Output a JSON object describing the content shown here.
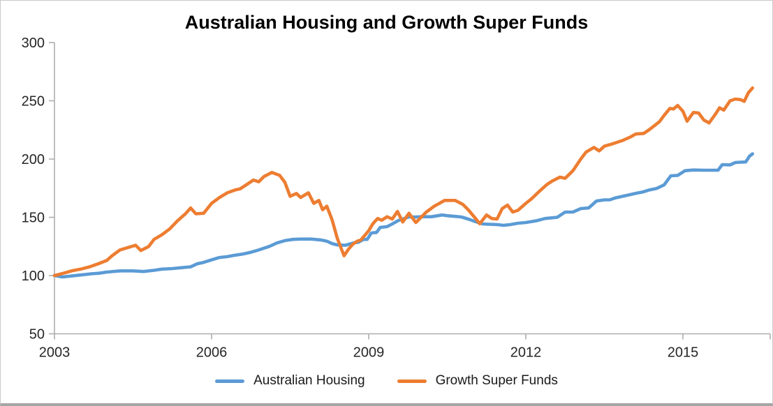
{
  "chart_data": {
    "type": "line",
    "title": "Australian Housing and Growth Super Funds",
    "xlabel": "",
    "ylabel": "",
    "grid": false,
    "legend_position": "bottom",
    "x_axis": {
      "min": 2003,
      "max": 2016.67,
      "tick_years": [
        2003,
        2006,
        2009,
        2012,
        2015
      ],
      "tick_labels": [
        "2003",
        "2006",
        "2009",
        "2012",
        "2015"
      ]
    },
    "y_axis": {
      "min": 50,
      "max": 300,
      "ticks": [
        50,
        100,
        150,
        200,
        250,
        300
      ]
    },
    "colors": {
      "housing": "#5B9BD5",
      "super_funds": "#ED7D31",
      "axis": "#ADADAD",
      "tick_text": "#262626"
    },
    "series": [
      {
        "name": "Australian Housing",
        "color": "#5B9BD5",
        "points": [
          [
            2003.0,
            100
          ],
          [
            2003.15,
            98.8
          ],
          [
            2003.3,
            99.5
          ],
          [
            2003.5,
            100.5
          ],
          [
            2003.7,
            101.5
          ],
          [
            2003.85,
            102
          ],
          [
            2004.0,
            103
          ],
          [
            2004.25,
            104
          ],
          [
            2004.5,
            104
          ],
          [
            2004.7,
            103.5
          ],
          [
            2004.9,
            104.5
          ],
          [
            2005.05,
            105.5
          ],
          [
            2005.25,
            106
          ],
          [
            2005.45,
            106.8
          ],
          [
            2005.6,
            107.5
          ],
          [
            2005.72,
            110
          ],
          [
            2005.85,
            111.3
          ],
          [
            2006.0,
            113.5
          ],
          [
            2006.15,
            115.5
          ],
          [
            2006.3,
            116.2
          ],
          [
            2006.45,
            117.5
          ],
          [
            2006.6,
            118.5
          ],
          [
            2006.75,
            120
          ],
          [
            2006.9,
            122
          ],
          [
            2007.1,
            125
          ],
          [
            2007.25,
            128
          ],
          [
            2007.4,
            130
          ],
          [
            2007.55,
            131
          ],
          [
            2007.7,
            131.3
          ],
          [
            2007.9,
            131.3
          ],
          [
            2008.1,
            130.5
          ],
          [
            2008.2,
            129.5
          ],
          [
            2008.3,
            127.5
          ],
          [
            2008.4,
            126.3
          ],
          [
            2008.55,
            126
          ],
          [
            2008.72,
            128.1
          ],
          [
            2008.8,
            128.5
          ],
          [
            2008.9,
            131
          ],
          [
            2008.97,
            131
          ],
          [
            2009.05,
            136.5
          ],
          [
            2009.15,
            137
          ],
          [
            2009.22,
            141.3
          ],
          [
            2009.35,
            142
          ],
          [
            2009.45,
            144.3
          ],
          [
            2009.57,
            147.3
          ],
          [
            2009.77,
            150.3
          ],
          [
            2009.9,
            150.3
          ],
          [
            2010.0,
            150.5
          ],
          [
            2010.2,
            150.5
          ],
          [
            2010.4,
            152
          ],
          [
            2010.5,
            151.4
          ],
          [
            2010.65,
            150.8
          ],
          [
            2010.77,
            150.3
          ],
          [
            2010.9,
            148.5
          ],
          [
            2011.05,
            146.1
          ],
          [
            2011.17,
            144.3
          ],
          [
            2011.3,
            144
          ],
          [
            2011.45,
            143.8
          ],
          [
            2011.57,
            143.1
          ],
          [
            2011.7,
            143.7
          ],
          [
            2011.85,
            144.9
          ],
          [
            2012.0,
            145.5
          ],
          [
            2012.2,
            147
          ],
          [
            2012.37,
            149
          ],
          [
            2012.6,
            150
          ],
          [
            2012.75,
            154.5
          ],
          [
            2012.9,
            154.5
          ],
          [
            2013.05,
            157.5
          ],
          [
            2013.2,
            158
          ],
          [
            2013.35,
            164
          ],
          [
            2013.5,
            165
          ],
          [
            2013.6,
            165
          ],
          [
            2013.7,
            166.5
          ],
          [
            2013.85,
            168
          ],
          [
            2014.0,
            169.5
          ],
          [
            2014.1,
            170.6
          ],
          [
            2014.24,
            171.8
          ],
          [
            2014.37,
            173.6
          ],
          [
            2014.5,
            174.8
          ],
          [
            2014.64,
            177.8
          ],
          [
            2014.77,
            185.6
          ],
          [
            2014.9,
            186
          ],
          [
            2015.04,
            190
          ],
          [
            2015.2,
            190.6
          ],
          [
            2015.4,
            190.4
          ],
          [
            2015.67,
            190.4
          ],
          [
            2015.75,
            195.2
          ],
          [
            2015.9,
            195
          ],
          [
            2016.0,
            197
          ],
          [
            2016.1,
            197.3
          ],
          [
            2016.2,
            197.5
          ],
          [
            2016.27,
            202.4
          ],
          [
            2016.33,
            204.5
          ]
        ]
      },
      {
        "name": "Growth Super Funds",
        "color": "#ED7D31",
        "points": [
          [
            2003.0,
            100
          ],
          [
            2003.17,
            102
          ],
          [
            2003.33,
            104
          ],
          [
            2003.5,
            105.5
          ],
          [
            2003.67,
            107.5
          ],
          [
            2003.83,
            110
          ],
          [
            2004.0,
            113
          ],
          [
            2004.1,
            117
          ],
          [
            2004.25,
            122
          ],
          [
            2004.4,
            124
          ],
          [
            2004.55,
            126
          ],
          [
            2004.65,
            121.5
          ],
          [
            2004.8,
            125
          ],
          [
            2004.9,
            131
          ],
          [
            2005.05,
            135
          ],
          [
            2005.2,
            140
          ],
          [
            2005.35,
            147
          ],
          [
            2005.5,
            153
          ],
          [
            2005.6,
            158
          ],
          [
            2005.7,
            153
          ],
          [
            2005.85,
            153.5
          ],
          [
            2006.0,
            162
          ],
          [
            2006.15,
            167
          ],
          [
            2006.3,
            171
          ],
          [
            2006.45,
            173.5
          ],
          [
            2006.55,
            174.5
          ],
          [
            2006.7,
            179
          ],
          [
            2006.8,
            182
          ],
          [
            2006.9,
            180.5
          ],
          [
            2007.0,
            185
          ],
          [
            2007.15,
            188.5
          ],
          [
            2007.3,
            186
          ],
          [
            2007.4,
            180
          ],
          [
            2007.5,
            168
          ],
          [
            2007.62,
            170.5
          ],
          [
            2007.7,
            167
          ],
          [
            2007.85,
            171
          ],
          [
            2007.95,
            162
          ],
          [
            2008.05,
            164.5
          ],
          [
            2008.12,
            156.5
          ],
          [
            2008.2,
            159.5
          ],
          [
            2008.3,
            148
          ],
          [
            2008.4,
            132
          ],
          [
            2008.53,
            117
          ],
          [
            2008.62,
            123
          ],
          [
            2008.7,
            127
          ],
          [
            2008.78,
            129.5
          ],
          [
            2008.85,
            130.5
          ],
          [
            2009.0,
            138.5
          ],
          [
            2009.08,
            144.5
          ],
          [
            2009.17,
            149
          ],
          [
            2009.25,
            147.5
          ],
          [
            2009.35,
            150.5
          ],
          [
            2009.45,
            148.5
          ],
          [
            2009.55,
            155
          ],
          [
            2009.65,
            146
          ],
          [
            2009.77,
            153.5
          ],
          [
            2009.9,
            145.5
          ],
          [
            2010.0,
            150
          ],
          [
            2010.1,
            154.5
          ],
          [
            2010.25,
            159.5
          ],
          [
            2010.45,
            164.5
          ],
          [
            2010.65,
            164.5
          ],
          [
            2010.8,
            161
          ],
          [
            2010.9,
            156.5
          ],
          [
            2011.05,
            148.5
          ],
          [
            2011.12,
            144.5
          ],
          [
            2011.25,
            152
          ],
          [
            2011.35,
            149
          ],
          [
            2011.45,
            148.5
          ],
          [
            2011.55,
            157.5
          ],
          [
            2011.65,
            160.5
          ],
          [
            2011.75,
            154.5
          ],
          [
            2011.85,
            156
          ],
          [
            2012.0,
            162
          ],
          [
            2012.1,
            165.5
          ],
          [
            2012.25,
            172
          ],
          [
            2012.4,
            178
          ],
          [
            2012.5,
            181
          ],
          [
            2012.65,
            184.5
          ],
          [
            2012.75,
            183.5
          ],
          [
            2012.9,
            190
          ],
          [
            2013.05,
            200
          ],
          [
            2013.15,
            206
          ],
          [
            2013.3,
            210
          ],
          [
            2013.4,
            207
          ],
          [
            2013.5,
            211
          ],
          [
            2013.65,
            213
          ],
          [
            2013.85,
            216
          ],
          [
            2014.0,
            219
          ],
          [
            2014.1,
            221.5
          ],
          [
            2014.25,
            222
          ],
          [
            2014.35,
            225
          ],
          [
            2014.45,
            228.5
          ],
          [
            2014.55,
            232
          ],
          [
            2014.65,
            238
          ],
          [
            2014.75,
            243.5
          ],
          [
            2014.82,
            243
          ],
          [
            2014.9,
            246
          ],
          [
            2015.0,
            241
          ],
          [
            2015.08,
            232.5
          ],
          [
            2015.2,
            240
          ],
          [
            2015.3,
            239.5
          ],
          [
            2015.4,
            233.5
          ],
          [
            2015.5,
            231
          ],
          [
            2015.62,
            238.5
          ],
          [
            2015.7,
            244
          ],
          [
            2015.78,
            242
          ],
          [
            2015.9,
            250
          ],
          [
            2016.0,
            251.5
          ],
          [
            2016.1,
            251
          ],
          [
            2016.17,
            249.5
          ],
          [
            2016.25,
            257
          ],
          [
            2016.33,
            261
          ]
        ]
      }
    ]
  }
}
